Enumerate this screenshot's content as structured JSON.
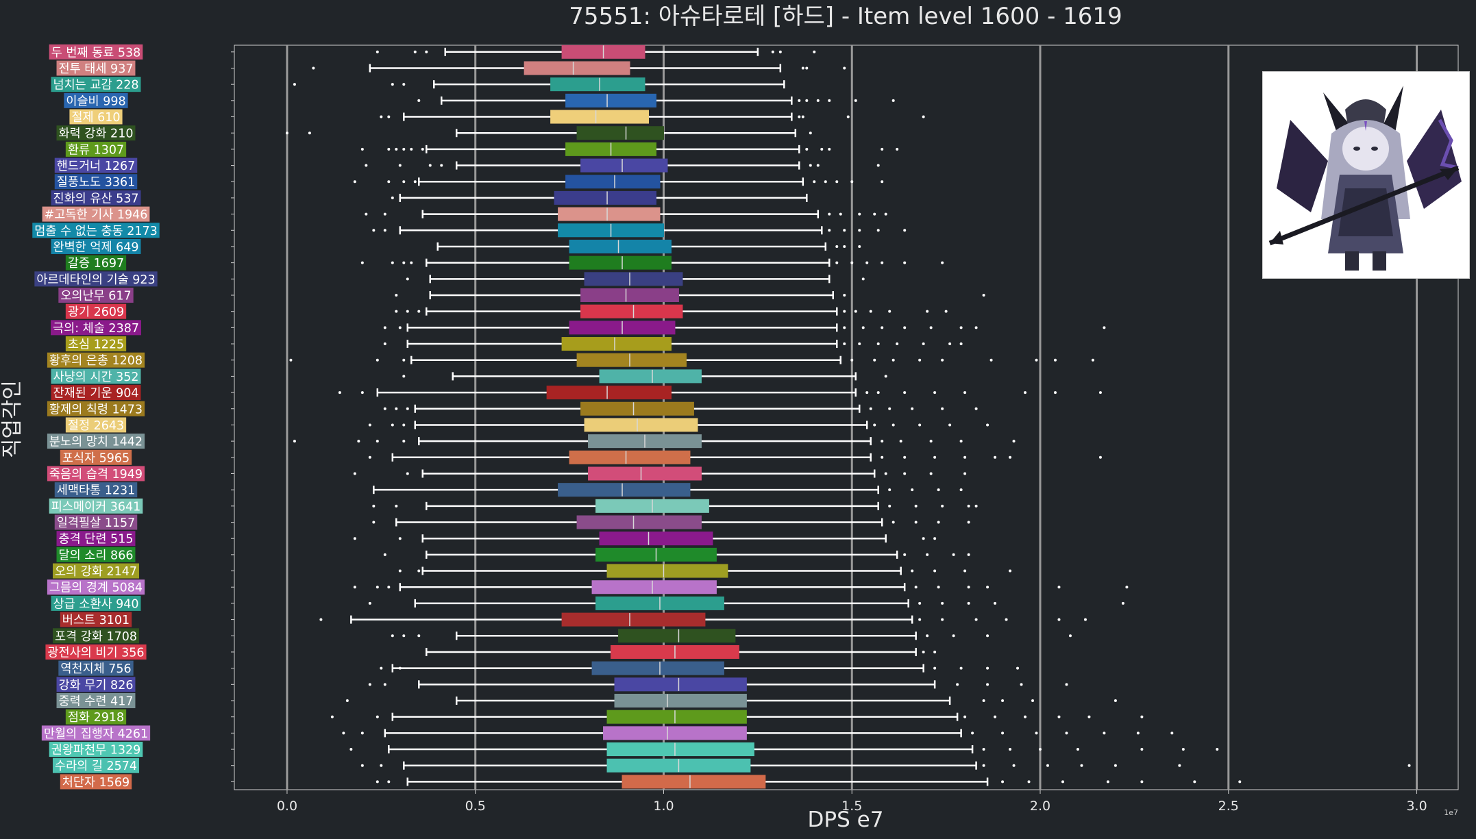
{
  "chart_data": {
    "type": "box",
    "title": "75551: 아슈타로테 [하드] - Item level 1600 - 1619",
    "xlabel": "DPS e7",
    "ylabel": "직업각인",
    "x_scale_note": "1e7",
    "xlim": [
      -0.14,
      3.11
    ],
    "xticks": [
      0.0,
      0.5,
      1.0,
      1.5,
      2.0,
      2.5,
      3.0
    ],
    "xtick_labels": [
      "0.0",
      "0.5",
      "1.0",
      "1.5",
      "2.0",
      "2.5",
      "3.0"
    ],
    "grid": "vertical",
    "series": [
      {
        "label": "두 번째 동료 538",
        "color": "#c94d75",
        "wl": 0.42,
        "q1": 0.73,
        "median": 0.84,
        "q3": 0.95,
        "wh": 1.25,
        "outliers": [
          0.24,
          0.34,
          0.37,
          1.29,
          1.31,
          1.4
        ]
      },
      {
        "label": "전투 태세 937",
        "color": "#d08080",
        "wl": 0.22,
        "q1": 0.63,
        "median": 0.76,
        "q3": 0.91,
        "wh": 1.31,
        "outliers": [
          0.07,
          1.37,
          1.38,
          1.48
        ]
      },
      {
        "label": "넘치는 교감 228",
        "color": "#2c9e8e",
        "wl": 0.39,
        "q1": 0.7,
        "median": 0.83,
        "q3": 0.95,
        "wh": 1.32,
        "outliers": [
          0.02,
          0.28,
          0.31
        ]
      },
      {
        "label": "이슬비 998",
        "color": "#2966b0",
        "wl": 0.41,
        "q1": 0.74,
        "median": 0.85,
        "q3": 0.98,
        "wh": 1.34,
        "outliers": [
          0.35,
          1.36,
          1.38,
          1.41,
          1.44,
          1.51,
          1.61
        ]
      },
      {
        "label": "절제 610",
        "color": "#efcf7a",
        "wl": 0.31,
        "q1": 0.7,
        "median": 0.82,
        "q3": 0.96,
        "wh": 1.34,
        "outliers": [
          0.25,
          0.27,
          1.36,
          1.37,
          1.49,
          1.69
        ]
      },
      {
        "label": "화력 강화 210",
        "color": "#2f5220",
        "wl": 0.45,
        "q1": 0.77,
        "median": 0.9,
        "q3": 1.0,
        "wh": 1.35,
        "outliers": [
          0.0,
          0.06,
          1.39
        ]
      },
      {
        "label": "환류 1307",
        "color": "#5e9a1c",
        "wl": 0.37,
        "q1": 0.74,
        "median": 0.86,
        "q3": 0.98,
        "wh": 1.36,
        "outliers": [
          0.2,
          0.27,
          0.29,
          0.31,
          0.33,
          0.36,
          1.38,
          1.42,
          1.44,
          1.58,
          1.62
        ]
      },
      {
        "label": "핸드거너 1267",
        "color": "#4a47a3",
        "wl": 0.45,
        "q1": 0.78,
        "median": 0.89,
        "q3": 1.01,
        "wh": 1.36,
        "outliers": [
          0.21,
          0.3,
          0.38,
          0.41,
          1.39,
          1.41,
          1.57
        ]
      },
      {
        "label": "질풍노도 3361",
        "color": "#2453a0",
        "wl": 0.35,
        "q1": 0.74,
        "median": 0.87,
        "q3": 0.99,
        "wh": 1.37,
        "outliers": [
          0.18,
          0.27,
          0.31,
          0.34,
          1.4,
          1.43,
          1.46,
          1.5,
          1.58
        ]
      },
      {
        "label": "진화의 유산 537",
        "color": "#3b3d8c",
        "wl": 0.3,
        "q1": 0.71,
        "median": 0.85,
        "q3": 0.98,
        "wh": 1.38,
        "outliers": [
          0.28
        ]
      },
      {
        "label": "#고독한 기사 1946",
        "color": "#db938b",
        "wl": 0.36,
        "q1": 0.72,
        "median": 0.85,
        "q3": 0.99,
        "wh": 1.41,
        "outliers": [
          0.21,
          0.26,
          1.44,
          1.47,
          1.52,
          1.56,
          1.59
        ]
      },
      {
        "label": "멈출 수 없는 충동 2173",
        "color": "#138aa8",
        "wl": 0.3,
        "q1": 0.72,
        "median": 0.86,
        "q3": 1.0,
        "wh": 1.42,
        "outliers": [
          0.23,
          0.26,
          1.44,
          1.48,
          1.52,
          1.57,
          1.64
        ]
      },
      {
        "label": "완벽한 억제 649",
        "color": "#1484a8",
        "wl": 0.4,
        "q1": 0.75,
        "median": 0.88,
        "q3": 1.02,
        "wh": 1.43,
        "outliers": [
          1.46,
          1.48,
          1.52
        ]
      },
      {
        "label": "갈증 1697",
        "color": "#1f7d1f",
        "wl": 0.37,
        "q1": 0.75,
        "median": 0.89,
        "q3": 1.02,
        "wh": 1.44,
        "outliers": [
          0.2,
          0.28,
          0.31,
          0.33,
          1.46,
          1.5,
          1.54,
          1.58,
          1.64,
          1.74
        ]
      },
      {
        "label": "아르데타인의 기술 923",
        "color": "#3a4082",
        "wl": 0.38,
        "q1": 0.79,
        "median": 0.91,
        "q3": 1.05,
        "wh": 1.44,
        "outliers": [
          0.32,
          1.53
        ]
      },
      {
        "label": "오의난무 617",
        "color": "#8a3f88",
        "wl": 0.38,
        "q1": 0.78,
        "median": 0.9,
        "q3": 1.04,
        "wh": 1.45,
        "outliers": [
          0.29,
          1.48,
          1.85
        ]
      },
      {
        "label": "광기 2609",
        "color": "#d9364c",
        "wl": 0.37,
        "q1": 0.78,
        "median": 0.92,
        "q3": 1.05,
        "wh": 1.46,
        "outliers": [
          0.29,
          0.32,
          0.35,
          1.48,
          1.51,
          1.55,
          1.6,
          1.7,
          1.75
        ]
      },
      {
        "label": "극의: 체술 2387",
        "color": "#8a1a8a",
        "wl": 0.32,
        "q1": 0.75,
        "median": 0.89,
        "q3": 1.03,
        "wh": 1.46,
        "outliers": [
          0.26,
          0.3,
          1.48,
          1.53,
          1.58,
          1.64,
          1.71,
          1.79,
          1.83,
          2.17
        ]
      },
      {
        "label": "초심 1225",
        "color": "#a79d1c",
        "wl": 0.32,
        "q1": 0.73,
        "median": 0.87,
        "q3": 1.02,
        "wh": 1.46,
        "outliers": [
          0.26,
          1.48,
          1.52,
          1.57,
          1.62,
          1.69,
          1.76,
          1.79
        ]
      },
      {
        "label": "황후의 은총 1208",
        "color": "#a38420",
        "wl": 0.33,
        "q1": 0.77,
        "median": 0.91,
        "q3": 1.06,
        "wh": 1.47,
        "outliers": [
          0.01,
          0.24,
          0.31,
          1.5,
          1.56,
          1.61,
          1.68,
          1.74,
          1.87,
          1.99,
          2.04,
          2.14
        ]
      },
      {
        "label": "사냥의 시간 352",
        "color": "#4fb3a8",
        "wl": 0.44,
        "q1": 0.83,
        "median": 0.97,
        "q3": 1.1,
        "wh": 1.51,
        "outliers": [
          0.31,
          1.59
        ]
      },
      {
        "label": "잔재된 기운 904",
        "color": "#a82323",
        "wl": 0.24,
        "q1": 0.69,
        "median": 0.85,
        "q3": 1.02,
        "wh": 1.51,
        "outliers": [
          0.14,
          0.2,
          1.54,
          1.57,
          1.64,
          1.72,
          1.8,
          1.96,
          2.04,
          2.16
        ]
      },
      {
        "label": "황제의 칙령 1473",
        "color": "#9b7a1e",
        "wl": 0.34,
        "q1": 0.78,
        "median": 0.92,
        "q3": 1.08,
        "wh": 1.52,
        "outliers": [
          0.26,
          0.29,
          0.32,
          1.55,
          1.6,
          1.66,
          1.74,
          1.83
        ]
      },
      {
        "label": "절정 2643",
        "color": "#ebcd78",
        "wl": 0.34,
        "q1": 0.79,
        "median": 0.93,
        "q3": 1.09,
        "wh": 1.54,
        "outliers": [
          0.22,
          0.28,
          0.31,
          1.56,
          1.61,
          1.68,
          1.76,
          1.86
        ]
      },
      {
        "label": "분노의 망치 1442",
        "color": "#7a9295",
        "wl": 0.35,
        "q1": 0.8,
        "median": 0.95,
        "q3": 1.1,
        "wh": 1.55,
        "outliers": [
          0.02,
          0.19,
          0.24,
          0.31,
          1.58,
          1.63,
          1.71,
          1.79,
          1.93
        ]
      },
      {
        "label": "포식자 5965",
        "color": "#cf6f4a",
        "wl": 0.28,
        "q1": 0.75,
        "median": 0.9,
        "q3": 1.07,
        "wh": 1.55,
        "outliers": [
          0.22,
          1.58,
          1.64,
          1.72,
          1.8,
          1.88,
          1.92,
          2.16
        ]
      },
      {
        "label": "죽음의 습격 1949",
        "color": "#d24d79",
        "wl": 0.36,
        "q1": 0.8,
        "median": 0.94,
        "q3": 1.1,
        "wh": 1.56,
        "outliers": [
          0.18,
          0.32,
          1.59,
          1.64,
          1.71,
          1.8
        ]
      },
      {
        "label": "세맥타통 1231",
        "color": "#3a5f8c",
        "wl": 0.23,
        "q1": 0.72,
        "median": 0.89,
        "q3": 1.07,
        "wh": 1.57,
        "outliers": [
          1.6,
          1.66,
          1.73,
          1.79
        ]
      },
      {
        "label": "피스메이커 3641",
        "color": "#7bc9b8",
        "wl": 0.37,
        "q1": 0.82,
        "median": 0.97,
        "q3": 1.12,
        "wh": 1.57,
        "outliers": [
          0.23,
          0.29,
          1.6,
          1.67,
          1.74,
          1.81,
          1.83
        ]
      },
      {
        "label": "일격필살 1157",
        "color": "#8a4c8a",
        "wl": 0.29,
        "q1": 0.77,
        "median": 0.92,
        "q3": 1.1,
        "wh": 1.58,
        "outliers": [
          0.23,
          1.61,
          1.67,
          1.73,
          1.81
        ]
      },
      {
        "label": "충격 단련 515",
        "color": "#8a1a8c",
        "wl": 0.36,
        "q1": 0.83,
        "median": 0.96,
        "q3": 1.13,
        "wh": 1.59,
        "outliers": [
          0.18,
          0.3,
          1.69,
          1.72
        ]
      },
      {
        "label": "달의 소리 866",
        "color": "#1f8a2a",
        "wl": 0.37,
        "q1": 0.82,
        "median": 0.98,
        "q3": 1.14,
        "wh": 1.62,
        "outliers": [
          0.26,
          1.64,
          1.7,
          1.77,
          1.81
        ]
      },
      {
        "label": "오의 강화 2147",
        "color": "#9e9e22",
        "wl": 0.36,
        "q1": 0.85,
        "median": 1.0,
        "q3": 1.17,
        "wh": 1.63,
        "outliers": [
          0.3,
          0.35,
          1.66,
          1.72,
          1.8,
          1.92
        ]
      },
      {
        "label": "그믐의 경계 5084",
        "color": "#b873c9",
        "wl": 0.3,
        "q1": 0.81,
        "median": 0.97,
        "q3": 1.14,
        "wh": 1.64,
        "outliers": [
          0.18,
          0.24,
          0.27,
          1.67,
          1.73,
          1.81,
          1.86,
          2.05,
          2.23
        ]
      },
      {
        "label": "상급 소환사 940",
        "color": "#2c9e8e",
        "wl": 0.34,
        "q1": 0.82,
        "median": 0.99,
        "q3": 1.16,
        "wh": 1.65,
        "outliers": [
          0.22,
          1.68,
          1.74,
          1.81,
          1.88,
          2.22
        ]
      },
      {
        "label": "버스트 3101",
        "color": "#a82d2d",
        "wl": 0.17,
        "q1": 0.73,
        "median": 0.91,
        "q3": 1.11,
        "wh": 1.66,
        "outliers": [
          0.09,
          1.68,
          1.74,
          1.83,
          1.91,
          2.05,
          2.12
        ]
      },
      {
        "label": "포격 강화 1708",
        "color": "#2f5220",
        "wl": 0.45,
        "q1": 0.88,
        "median": 1.04,
        "q3": 1.19,
        "wh": 1.67,
        "outliers": [
          0.28,
          0.31,
          0.35,
          1.7,
          1.77,
          1.86,
          2.08
        ]
      },
      {
        "label": "광전사의 비기 356",
        "color": "#d93a4c",
        "wl": 0.37,
        "q1": 0.86,
        "median": 1.03,
        "q3": 1.2,
        "wh": 1.67,
        "outliers": [
          1.69,
          1.72
        ]
      },
      {
        "label": "역천지체 756",
        "color": "#3a5f8c",
        "wl": 0.28,
        "q1": 0.81,
        "median": 0.99,
        "q3": 1.16,
        "wh": 1.69,
        "outliers": [
          0.25,
          0.3,
          1.72,
          1.79,
          1.86,
          1.94
        ]
      },
      {
        "label": "강화 무기 826",
        "color": "#4a47a3",
        "wl": 0.35,
        "q1": 0.87,
        "median": 1.04,
        "q3": 1.22,
        "wh": 1.72,
        "outliers": [
          0.22,
          0.26,
          1.78,
          1.86,
          1.95,
          2.07
        ]
      },
      {
        "label": "중력 수련 417",
        "color": "#7a9295",
        "wl": 0.45,
        "q1": 0.87,
        "median": 1.01,
        "q3": 1.22,
        "wh": 1.76,
        "outliers": [
          0.16,
          1.85,
          1.9,
          1.98,
          2.2
        ]
      },
      {
        "label": "점화 2918",
        "color": "#5e9a1c",
        "wl": 0.28,
        "q1": 0.85,
        "median": 1.03,
        "q3": 1.22,
        "wh": 1.78,
        "outliers": [
          0.12,
          0.24,
          1.8,
          1.88,
          1.96,
          2.05,
          2.13,
          2.27
        ]
      },
      {
        "label": "만월의 집행자 4261",
        "color": "#b873c9",
        "wl": 0.26,
        "q1": 0.84,
        "median": 1.01,
        "q3": 1.22,
        "wh": 1.79,
        "outliers": [
          0.15,
          0.2,
          1.82,
          1.9,
          1.99,
          2.07,
          2.17,
          2.26,
          2.35
        ]
      },
      {
        "label": "권왕파천무 1329",
        "color": "#4fc7b2",
        "wl": 0.27,
        "q1": 0.85,
        "median": 1.03,
        "q3": 1.24,
        "wh": 1.82,
        "outliers": [
          0.17,
          1.85,
          1.92,
          2.0,
          2.1,
          2.27,
          2.38,
          2.47
        ]
      },
      {
        "label": "수라의 길 2574",
        "color": "#4cc1b0",
        "wl": 0.31,
        "q1": 0.85,
        "median": 1.04,
        "q3": 1.23,
        "wh": 1.83,
        "outliers": [
          0.2,
          0.25,
          1.85,
          1.93,
          2.02,
          2.11,
          2.2,
          2.37,
          2.98
        ]
      },
      {
        "label": "처단자 1569",
        "color": "#d26a4a",
        "wl": 0.32,
        "q1": 0.89,
        "median": 1.07,
        "q3": 1.27,
        "wh": 1.86,
        "outliers": [
          0.24,
          0.27,
          1.9,
          1.97,
          2.06,
          2.18,
          2.27,
          2.41,
          2.53
        ]
      }
    ]
  }
}
